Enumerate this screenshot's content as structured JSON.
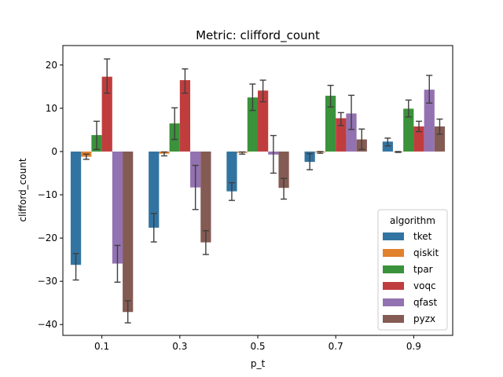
{
  "chart_data": {
    "type": "bar",
    "title": "Metric: clifford_count",
    "xlabel": "p_t",
    "ylabel": "clifford_count",
    "categories": [
      "0.1",
      "0.3",
      "0.5",
      "0.7",
      "0.9"
    ],
    "ylim": [
      -42.5,
      24.5
    ],
    "yticks": [
      20,
      10,
      0,
      -10,
      -20,
      -30,
      -40
    ],
    "ytick_labels": [
      "20",
      "10",
      "0",
      "−10",
      "−20",
      "−30",
      "−40"
    ],
    "grid": false,
    "legend": {
      "title": "algorithm",
      "position": "lower-right"
    },
    "error_bars": true,
    "series": [
      {
        "name": "tket",
        "color": "#3274a1",
        "values": [
          -26.2,
          -17.6,
          -9.2,
          -2.4,
          2.3
        ],
        "err_low": [
          -29.7,
          -20.9,
          -11.3,
          -4.2,
          1.3
        ],
        "err_high": [
          -23.6,
          -14.3,
          -7.2,
          -0.5,
          3.1
        ]
      },
      {
        "name": "qiskit",
        "color": "#e1812c",
        "values": [
          -1.2,
          -0.5,
          -0.3,
          -0.2,
          -0.1
        ],
        "err_low": [
          -1.8,
          -1.0,
          -0.6,
          -0.4,
          -0.2
        ],
        "err_high": [
          -0.6,
          -0.1,
          -0.1,
          0.0,
          0.0
        ]
      },
      {
        "name": "tpar",
        "color": "#3a923a",
        "values": [
          3.8,
          6.5,
          12.5,
          12.9,
          9.9
        ],
        "err_low": [
          0.5,
          2.8,
          9.5,
          10.3,
          8.0
        ],
        "err_high": [
          7.0,
          10.1,
          15.6,
          15.3,
          11.9
        ]
      },
      {
        "name": "voqc",
        "color": "#c03d3e",
        "values": [
          17.3,
          16.5,
          14.1,
          7.7,
          5.8
        ],
        "err_low": [
          13.5,
          13.5,
          11.5,
          6.0,
          4.6
        ],
        "err_high": [
          21.4,
          19.1,
          16.5,
          9.0,
          7.0
        ]
      },
      {
        "name": "qfast",
        "color": "#9372b2",
        "values": [
          -25.9,
          -8.3,
          -0.7,
          8.8,
          14.3
        ],
        "err_low": [
          -30.2,
          -13.4,
          -5.0,
          5.1,
          11.2
        ],
        "err_high": [
          -21.7,
          -3.2,
          3.7,
          13.0,
          17.6
        ]
      },
      {
        "name": "pyzx",
        "color": "#845b53",
        "values": [
          -37.1,
          -21.0,
          -8.4,
          2.8,
          5.8
        ],
        "err_low": [
          -39.6,
          -23.8,
          -11.0,
          0.5,
          4.0
        ],
        "err_high": [
          -34.5,
          -18.3,
          -6.2,
          5.2,
          7.5
        ]
      }
    ]
  }
}
